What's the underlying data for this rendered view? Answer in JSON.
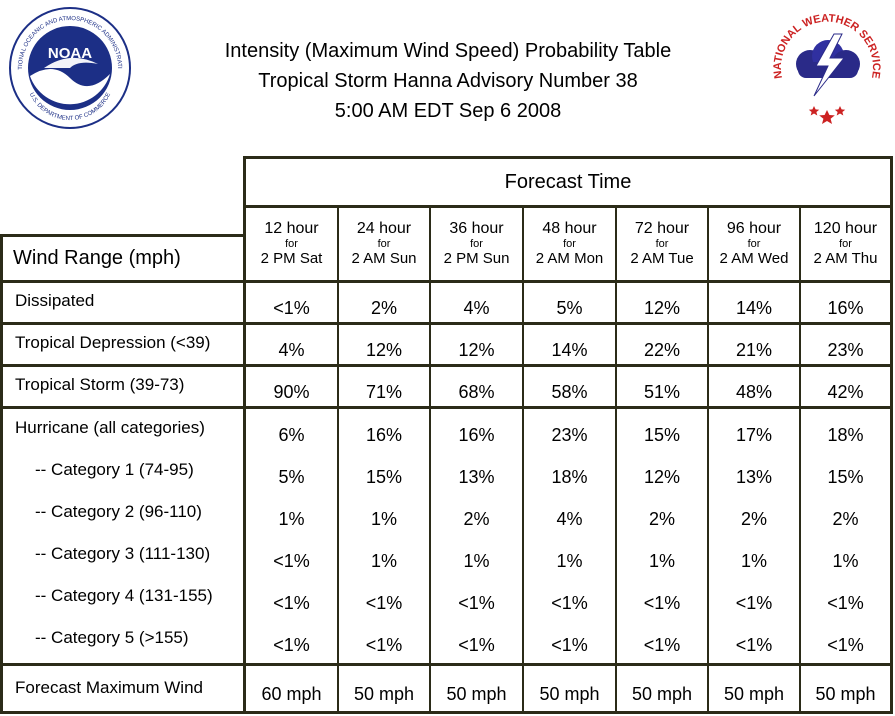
{
  "title": {
    "line1": "Intensity (Maximum Wind Speed) Probability Table",
    "line2": "Tropical Storm Hanna Advisory Number 38",
    "line3": "5:00 AM EDT Sep 6 2008"
  },
  "logos": {
    "noaa_text": "NOAA",
    "noaa_ring": "NATIONAL OCEANIC AND ATMOSPHERIC ADMINISTRATION",
    "noaa_ring_bottom": "U.S. DEPARTMENT OF COMMERCE",
    "nws_ring": "NATIONAL WEATHER SERVICE"
  },
  "table": {
    "forecast_time_label": "Forecast Time",
    "wind_range_label": "Wind Range (mph)",
    "columns": [
      {
        "hour": "12 hour",
        "for": "for",
        "when": "2 PM Sat"
      },
      {
        "hour": "24 hour",
        "for": "for",
        "when": "2 AM Sun"
      },
      {
        "hour": "36 hour",
        "for": "for",
        "when": "2 PM Sun"
      },
      {
        "hour": "48 hour",
        "for": "for",
        "when": "2 AM Mon"
      },
      {
        "hour": "72 hour",
        "for": "for",
        "when": "2 AM Tue"
      },
      {
        "hour": "96 hour",
        "for": "for",
        "when": "2 AM Wed"
      },
      {
        "hour": "120 hour",
        "for": "for",
        "when": "2 AM Thu"
      }
    ],
    "rows": [
      {
        "label": "Dissipated",
        "values": [
          "<1%",
          "2%",
          "4%",
          "5%",
          "12%",
          "14%",
          "16%"
        ]
      },
      {
        "label": "Tropical Depression (<39)",
        "values": [
          "4%",
          "12%",
          "12%",
          "14%",
          "22%",
          "21%",
          "23%"
        ]
      },
      {
        "label": "Tropical Storm (39-73)",
        "values": [
          "90%",
          "71%",
          "68%",
          "58%",
          "51%",
          "48%",
          "42%"
        ]
      },
      {
        "label": "Hurricane (all categories)",
        "values": [
          "6%",
          "16%",
          "16%",
          "23%",
          "15%",
          "17%",
          "18%"
        ]
      },
      {
        "label": "-- Category 1 (74-95)",
        "values": [
          "5%",
          "15%",
          "13%",
          "18%",
          "12%",
          "13%",
          "15%"
        ]
      },
      {
        "label": "-- Category 2 (96-110)",
        "values": [
          "1%",
          "1%",
          "2%",
          "4%",
          "2%",
          "2%",
          "2%"
        ]
      },
      {
        "label": "-- Category 3 (111-130)",
        "values": [
          "<1%",
          "1%",
          "1%",
          "1%",
          "1%",
          "1%",
          "1%"
        ]
      },
      {
        "label": "-- Category 4 (131-155)",
        "values": [
          "<1%",
          "<1%",
          "<1%",
          "<1%",
          "<1%",
          "<1%",
          "<1%"
        ]
      },
      {
        "label": "-- Category 5 (>155)",
        "values": [
          "<1%",
          "<1%",
          "<1%",
          "<1%",
          "<1%",
          "<1%",
          "<1%"
        ]
      }
    ],
    "forecast_max_wind": {
      "label": "Forecast Maximum Wind",
      "values": [
        "60 mph",
        "50 mph",
        "50 mph",
        "50 mph",
        "50 mph",
        "50 mph",
        "50 mph"
      ]
    }
  },
  "colors": {
    "grid": "#2b2b18",
    "noaa_blue": "#1c2f86",
    "nws_red": "#cc2222"
  }
}
